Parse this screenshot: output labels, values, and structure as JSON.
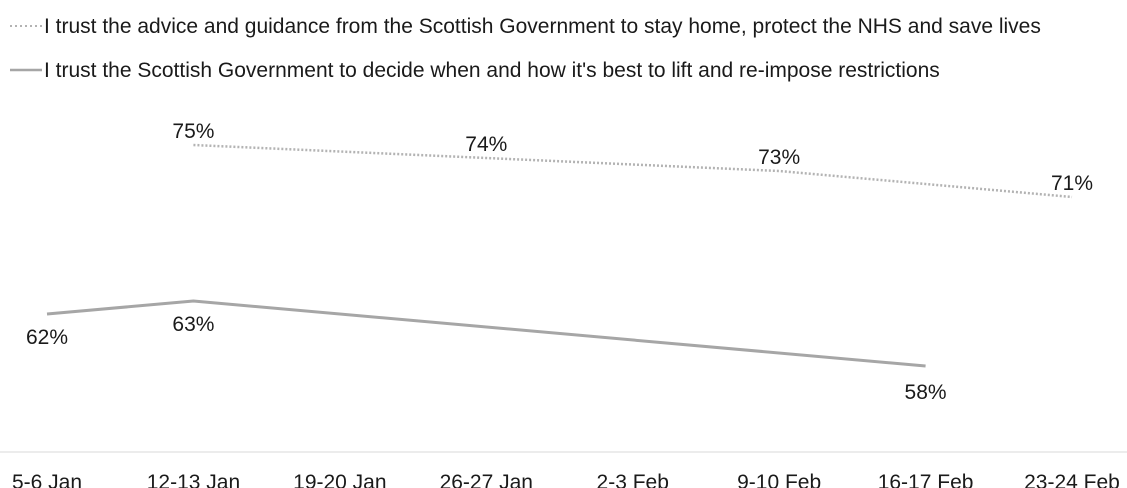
{
  "chart_data": {
    "type": "line",
    "title": "",
    "xlabel": "",
    "ylabel": "",
    "categories": [
      "5-6 Jan",
      "12-13 Jan",
      "19-20 Jan",
      "26-27 Jan",
      "2-3 Feb",
      "9-10 Feb",
      "16-17 Feb",
      "23-24 Feb"
    ],
    "series": [
      {
        "name": "I trust the advice and guidance from the Scottish Government to stay home, protect the NHS and save lives",
        "style": "dotted",
        "color": "#b3b3b3",
        "x": [
          "12-13 Jan",
          "26-27 Jan",
          "9-10 Feb",
          "23-24 Feb"
        ],
        "values": [
          75,
          74,
          73,
          71
        ],
        "data_labels": [
          "75%",
          "74%",
          "73%",
          "71%"
        ]
      },
      {
        "name": "I trust the Scottish Government to decide when and how it's best to lift and re-impose restrictions",
        "style": "solid",
        "color": "#a6a6a6",
        "x": [
          "5-6 Jan",
          "12-13 Jan",
          "16-17 Feb"
        ],
        "values": [
          62,
          63,
          58
        ],
        "data_labels": [
          "62%",
          "63%",
          "58%"
        ]
      }
    ],
    "ylim": [
      0,
      100
    ],
    "grid": false,
    "legend_position": "top-left",
    "axis_line_color": "#d9d9d9"
  }
}
